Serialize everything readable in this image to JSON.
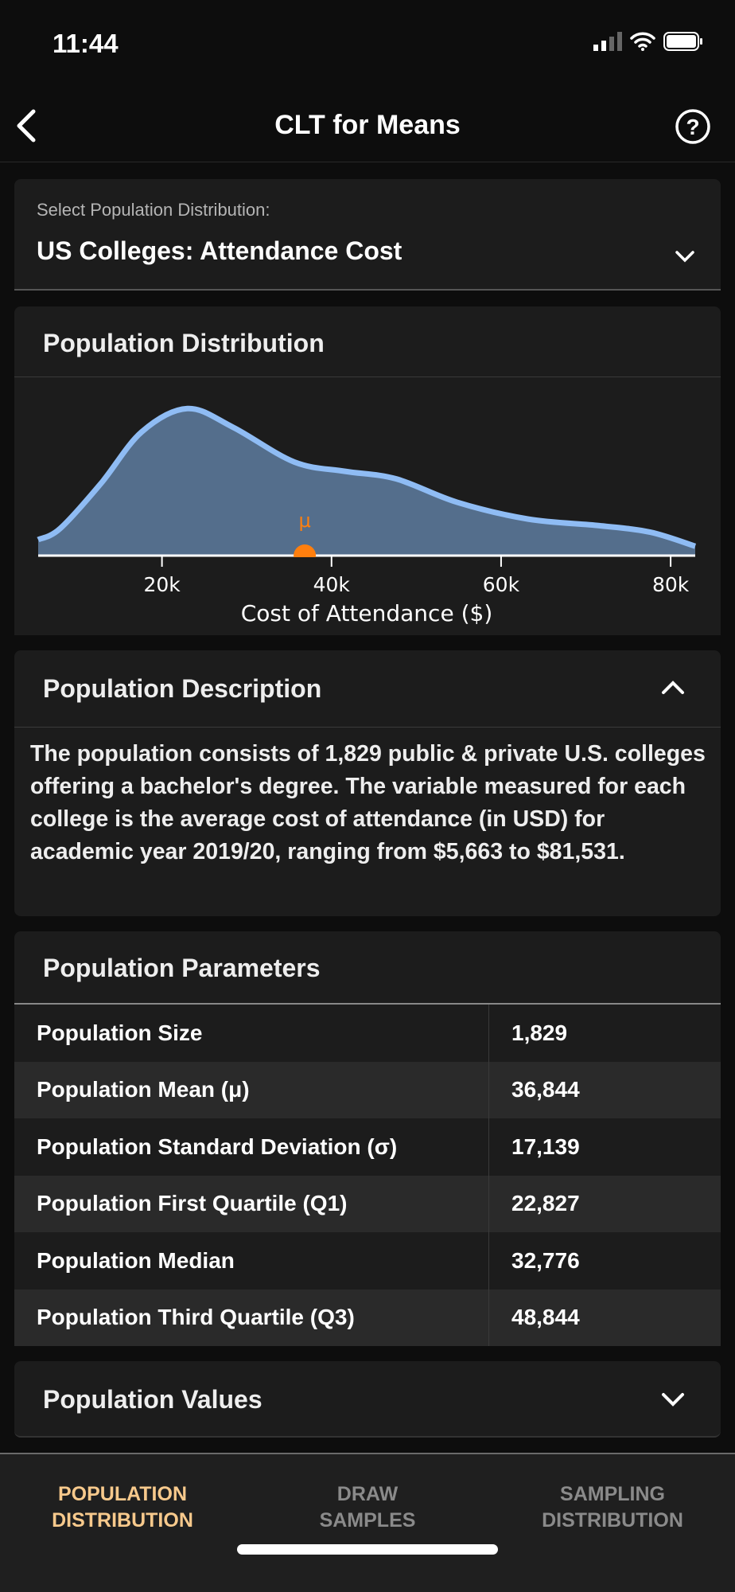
{
  "status": {
    "time": "11:44"
  },
  "header": {
    "title": "CLT for Means"
  },
  "selector": {
    "label": "Select Population Distribution:",
    "value": "US Colleges: Attendance Cost"
  },
  "distribution": {
    "title": "Population Distribution",
    "mu_label": "μ"
  },
  "chart_data": {
    "type": "area",
    "xlabel": "Cost of Attendance ($)",
    "xlim": [
      5400,
      82900
    ],
    "ticks": [
      {
        "value": 20000,
        "label": "20k"
      },
      {
        "value": 40000,
        "label": "40k"
      },
      {
        "value": 60000,
        "label": "60k"
      },
      {
        "value": 80000,
        "label": "80k"
      }
    ],
    "x": [
      5400,
      8000,
      12800,
      17600,
      23000,
      28400,
      35600,
      41600,
      47600,
      54800,
      63200,
      71600,
      77600,
      82900
    ],
    "density": [
      17,
      29,
      77,
      132,
      157,
      137,
      100,
      90,
      82,
      57,
      39,
      32,
      25,
      10
    ],
    "ylim": [
      0,
      170
    ],
    "mean": 36844,
    "colors": {
      "fill": "#546e8c",
      "line": "#8fbcf4",
      "mean": "#ff7f0e"
    }
  },
  "description": {
    "title": "Population Description",
    "text": "The population consists of 1,829 public & private U.S. colleges offering a bachelor's degree. The variable measured for each college is the average cost of attendance (in USD) for academic year 2019/20, ranging from $5,663 to $81,531."
  },
  "parameters": {
    "title": "Population Parameters",
    "rows": [
      {
        "label": "Population Size",
        "value": "1,829"
      },
      {
        "label": "Population Mean (μ)",
        "value": "36,844"
      },
      {
        "label": "Population Standard Deviation (σ)",
        "value": "17,139"
      },
      {
        "label": "Population First Quartile (Q1)",
        "value": "22,827"
      },
      {
        "label": "Population Median",
        "value": "32,776"
      },
      {
        "label": "Population Third Quartile (Q3)",
        "value": "48,844"
      }
    ]
  },
  "values": {
    "title": "Population Values"
  },
  "tabs": [
    {
      "line1": "POPULATION",
      "line2": "DISTRIBUTION"
    },
    {
      "line1": "DRAW",
      "line2": "SAMPLES"
    },
    {
      "line1": "SAMPLING",
      "line2": "DISTRIBUTION"
    }
  ]
}
